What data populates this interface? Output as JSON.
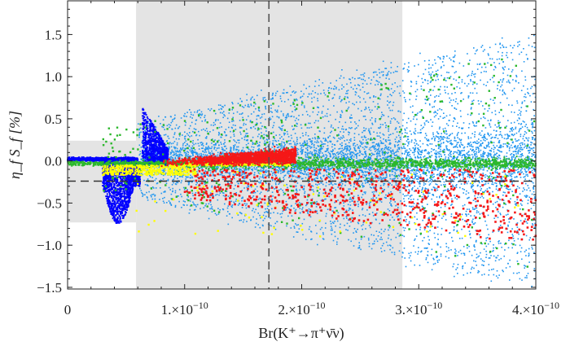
{
  "chart_data": {
    "type": "scatter",
    "xlabel": "Br(K⁺→π⁺ν̄ν)",
    "ylabel": "η_f S_f [%]",
    "xlim": [
      0,
      4e-10
    ],
    "ylim": [
      -1.52,
      1.9
    ],
    "x_ticks": [
      {
        "value": 0,
        "label": "0"
      },
      {
        "value": 1e-10,
        "label": "1.×10",
        "exp": "−10"
      },
      {
        "value": 2e-10,
        "label": "2.×10",
        "exp": "−10"
      },
      {
        "value": 3e-10,
        "label": "3.×10",
        "exp": "−10"
      },
      {
        "value": 4e-10,
        "label": "4.×10",
        "exp": "−10"
      }
    ],
    "y_ticks": [
      {
        "value": 1.5,
        "label": "1.5"
      },
      {
        "value": 1.0,
        "label": "1.0"
      },
      {
        "value": 0.5,
        "label": "0.5"
      },
      {
        "value": 0.0,
        "label": "0.0"
      },
      {
        "value": -0.5,
        "label": "−0.5"
      },
      {
        "value": -1.0,
        "label": "−1.0"
      },
      {
        "value": -1.5,
        "label": "−1.5"
      }
    ],
    "grid": false,
    "legend": "none",
    "shaded_regions": [
      {
        "x": [
          5.85e-11,
          2.86e-10
        ],
        "y": [
          -1.52,
          1.9
        ],
        "color": "#e4e4e4"
      },
      {
        "x": [
          0,
          5.85e-11
        ],
        "y": [
          -0.73,
          0.24
        ],
        "color": "#e4e4e4"
      }
    ],
    "reference_lines": [
      {
        "orientation": "vertical",
        "value": 1.72e-10,
        "style": "dashed",
        "color": "#555555"
      },
      {
        "orientation": "horizontal",
        "value": -0.24,
        "style": "dashed",
        "color": "#333333"
      }
    ],
    "series": [
      {
        "color": "#2196f0",
        "clouds": [
          {
            "x": [
              6e-11,
              4e-10
            ],
            "y_center": 0.0,
            "y_halfwidth_at_xmin": 0.45,
            "y_halfwidth_at_xmax": 1.5
          }
        ]
      },
      {
        "color": "#0000ff",
        "clouds": [
          {
            "x": [
              0,
              6e-11
            ],
            "y": [
              0.0,
              0.06
            ]
          },
          {
            "x": [
              3e-11,
              6e-11
            ],
            "y": [
              -0.75,
              0.0
            ]
          },
          {
            "x": [
              6.5e-11,
              8.5e-11
            ],
            "y": [
              -0.1,
              0.7
            ]
          }
        ]
      },
      {
        "color": "#2cb82c",
        "clouds": [
          {
            "x": [
              0,
              4e-10
            ],
            "y_center": -0.03,
            "y_halfwidth": 0.08
          }
        ]
      },
      {
        "color": "#ffff00",
        "clouds": [
          {
            "x": [
              3e-11,
              1.9e-10
            ],
            "y": [
              -0.2,
              -0.02
            ]
          }
        ]
      },
      {
        "color": "#f51818",
        "clouds": [
          {
            "x": [
              8e-11,
              1.95e-10
            ],
            "y": [
              -0.12,
              0.18
            ]
          },
          {
            "x": [
              1e-10,
              4e-10
            ],
            "y": [
              -0.95,
              -0.1
            ]
          }
        ]
      }
    ]
  }
}
